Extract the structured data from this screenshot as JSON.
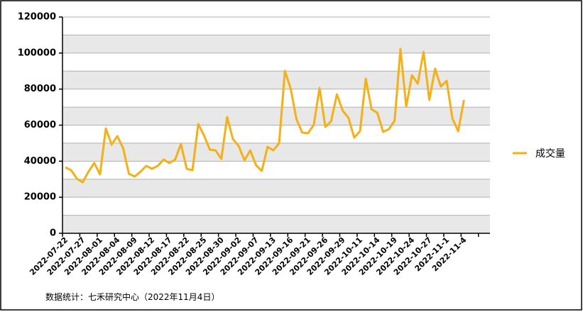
{
  "chart_data": {
    "type": "line",
    "categories": [
      "2022-07-22",
      null,
      null,
      "2022-07-27",
      null,
      null,
      "2022-08-01",
      null,
      null,
      "2022-08-04",
      null,
      null,
      "2022-08-09",
      null,
      null,
      "2022-08-12",
      null,
      null,
      "2022-08-17",
      null,
      null,
      "2022-08-22",
      null,
      null,
      "2022-08-25",
      null,
      null,
      "2022-08-30",
      null,
      null,
      "2022-09-02",
      null,
      null,
      "2022-09-07",
      null,
      null,
      "2022-09-13",
      null,
      null,
      "2022-09-16",
      null,
      null,
      "2022-09-21",
      null,
      null,
      "2022-09-26",
      null,
      null,
      "2022-09-29",
      null,
      null,
      "2022-10-11",
      null,
      null,
      "2022-10-14",
      null,
      null,
      "2022-10-19",
      null,
      null,
      "2022-10-24",
      null,
      null,
      "2022-10-27",
      null,
      null,
      "2022-11-1",
      null,
      null,
      "2022-11-4",
      null,
      null,
      null,
      null
    ],
    "series": [
      {
        "name": "成交量",
        "color": "#f5b016",
        "values": [
          36600,
          35000,
          30300,
          28300,
          34200,
          39000,
          32700,
          58200,
          49200,
          53900,
          47200,
          33000,
          31500,
          34200,
          37400,
          35800,
          37400,
          40900,
          39000,
          40900,
          49600,
          35800,
          35000,
          60600,
          54300,
          46400,
          46000,
          41300,
          64500,
          52300,
          48400,
          40500,
          46000,
          37800,
          34600,
          48000,
          46000,
          50000,
          90100,
          80300,
          63300,
          55900,
          55500,
          60200,
          80600,
          59000,
          62200,
          77100,
          68100,
          64100,
          53100,
          56600,
          85800,
          68800,
          66900,
          56300,
          57800,
          62500,
          102300,
          70400,
          87700,
          83000,
          100700,
          74000,
          91300,
          81400,
          84600,
          63700,
          56600,
          74000,
          null,
          null,
          null,
          null
        ]
      }
    ],
    "ylim": [
      0,
      120000
    ],
    "yticks": [
      0,
      20000,
      40000,
      60000,
      80000,
      100000,
      120000
    ],
    "grid": true,
    "legend": "right",
    "source": "数据统计：七禾研究中心（2022年11月4日）"
  }
}
